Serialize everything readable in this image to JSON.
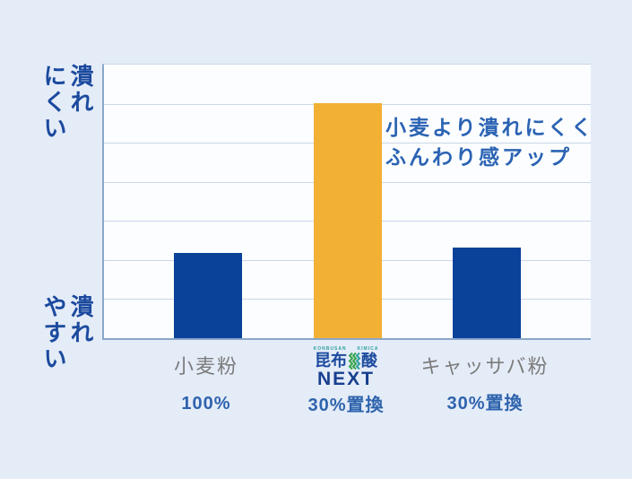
{
  "page": {
    "background": "#e4ecf8"
  },
  "chart_data": {
    "type": "bar",
    "title": "",
    "xlabel": "",
    "ylabel": "",
    "categories": [
      "小麦粉",
      "昆布酸NEXT",
      "キャッサバ粉"
    ],
    "category_sublabels": [
      "100%",
      "30%置換",
      "30%置換"
    ],
    "values": [
      31,
      86,
      33
    ],
    "ylim": [
      0,
      100
    ],
    "ylabel_top": "潰れ\nにくい",
    "ylabel_bottom": "潰れ\nやすい",
    "bar_colors": [
      "#0a429a",
      "#f2b134",
      "#0a429a"
    ],
    "grid": true,
    "grid_rows": 7,
    "legend": "none",
    "annotation": {
      "line1": "小麦より潰れにくく",
      "line2": "ふんわり感アップ",
      "color": "#2b63b3"
    }
  },
  "labels": {
    "col1": {
      "category": "小麦粉",
      "sub": "100%"
    },
    "col2": {
      "brand_small_left": "KONBUSAN",
      "brand_small_right": "KIMICA",
      "brand_main_left": "昆布",
      "brand_main_right": "酸",
      "brand_next": "NEXT",
      "sub": "30%置換"
    },
    "col3": {
      "category": "キャッサバ粉",
      "sub": "30%置換"
    }
  },
  "colors": {
    "background": "#e4ecf8",
    "plot_background": "#fbfdff",
    "gridline": "#ccd7e8",
    "axis": "#8aa6ca",
    "bar_blue": "#0a429a",
    "bar_orange": "#f2b134",
    "axis_text": "#1b4a9e",
    "category_text": "#7c7c7c",
    "sub_text": "#2e63ad",
    "brand_teal": "#2fa09d",
    "brand_green": "#36a34b",
    "brand_navy": "#173f8f"
  }
}
